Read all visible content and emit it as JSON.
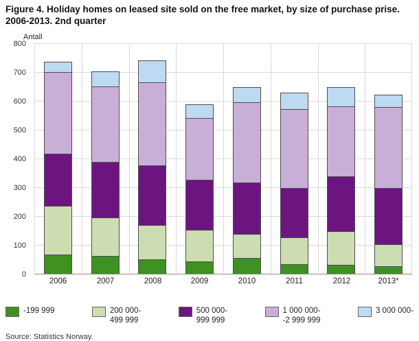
{
  "title": "Figure 4. Holiday homes on leased site sold on the free market, by size of purchase prise. 2006-2013. 2nd quarter",
  "y_axis_title": "Antall",
  "source": "Source: Statistics Norway.",
  "chart_data": {
    "type": "bar",
    "stacked": true,
    "title": "Figure 4. Holiday homes on leased site sold on the free market, by size of purchase prise. 2006-2013. 2nd quarter",
    "xlabel": "",
    "ylabel": "Antall",
    "categories": [
      "2006",
      "2007",
      "2008",
      "2009",
      "2010",
      "2011",
      "2012",
      "2013*"
    ],
    "series": [
      {
        "name": "-199 999",
        "color": "#3f9122",
        "values": [
          65,
          62,
          50,
          42,
          55,
          33,
          30,
          25
        ]
      },
      {
        "name": "200 000-\n499 999",
        "color": "#cdddb2",
        "values": [
          170,
          133,
          118,
          111,
          83,
          92,
          118,
          78
        ]
      },
      {
        "name": "500 000-\n999 999",
        "color": "#6c1580",
        "values": [
          180,
          193,
          207,
          172,
          177,
          172,
          190,
          195
        ]
      },
      {
        "name": "1 000 000-\n-2 999 999",
        "color": "#c9afd7",
        "values": [
          285,
          262,
          288,
          215,
          280,
          273,
          242,
          280
        ]
      },
      {
        "name": "3 000 000-",
        "color": "#bed9f2",
        "values": [
          35,
          53,
          77,
          48,
          53,
          57,
          68,
          44
        ]
      }
    ],
    "totals": [
      735,
      703,
      740,
      588,
      648,
      627,
      648,
      622
    ],
    "ylim": [
      0,
      800
    ],
    "ytick_step": 100,
    "grid": true,
    "legend_position": "bottom"
  }
}
